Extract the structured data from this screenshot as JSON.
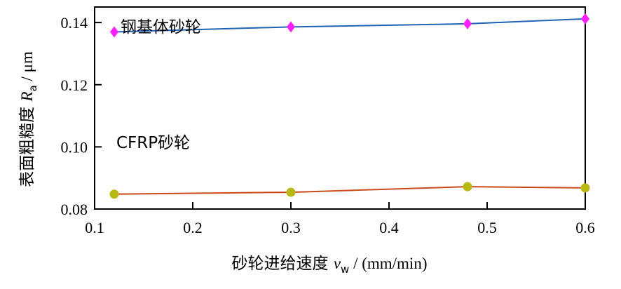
{
  "chart_data": {
    "type": "line",
    "title": "",
    "xlabel_main": "砂轮进给速度 ",
    "xlabel_var": "v",
    "xlabel_sub": "w",
    "xlabel_unit": " / (mm/min)",
    "ylabel_main": "表面粗糙度 ",
    "ylabel_var": "R",
    "ylabel_sub": "a",
    "ylabel_unit": " / μm",
    "xlim": [
      0.1,
      0.6
    ],
    "ylim": [
      0.08,
      0.145
    ],
    "xticks": [
      0.1,
      0.2,
      0.3,
      0.4,
      0.5,
      0.6
    ],
    "xtick_labels": [
      "0.1",
      "0.2",
      "0.3",
      "0.4",
      "0.5",
      "0.6"
    ],
    "yticks": [
      0.08,
      0.1,
      0.12,
      0.14
    ],
    "ytick_labels": [
      "0.08",
      "0.10",
      "0.12",
      "0.14"
    ],
    "grid": false,
    "series": [
      {
        "name": "钢基体砂轮",
        "x": [
          0.12,
          0.3,
          0.48,
          0.6
        ],
        "y": [
          0.137,
          0.1386,
          0.1396,
          0.1412
        ],
        "line_color": "#1f63b4",
        "marker": "diamond",
        "marker_color": "#ff1fff"
      },
      {
        "name": "CFRP砂轮",
        "x": [
          0.12,
          0.3,
          0.48,
          0.6
        ],
        "y": [
          0.0848,
          0.0854,
          0.0872,
          0.0868
        ],
        "line_color": "#cc4a1a",
        "marker": "circle",
        "marker_color": "#b8b814"
      }
    ]
  }
}
